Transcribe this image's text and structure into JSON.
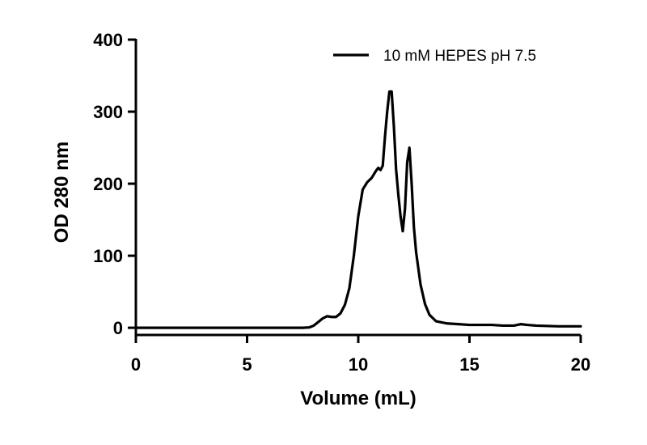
{
  "chart_data": {
    "type": "line",
    "title": "",
    "xlabel": "Volume (mL)",
    "ylabel": "OD 280 nm",
    "xlim": [
      0,
      20
    ],
    "ylim": [
      -10,
      400
    ],
    "xticks": [
      0,
      5,
      10,
      15,
      20
    ],
    "yticks": [
      0,
      100,
      200,
      300,
      400
    ],
    "xtick_labels": [
      "0",
      "5",
      "10",
      "15",
      "20"
    ],
    "ytick_labels": [
      "0",
      "100",
      "200",
      "300",
      "400"
    ],
    "grid": false,
    "legend_position": "top-right",
    "line_color": "#000000",
    "series": [
      {
        "name": "10 mM HEPES pH 7.5",
        "x": [
          0,
          1,
          2,
          3,
          4,
          5,
          6,
          7,
          7.5,
          7.8,
          8.0,
          8.2,
          8.4,
          8.6,
          8.8,
          9.0,
          9.2,
          9.4,
          9.6,
          9.8,
          10.0,
          10.2,
          10.4,
          10.6,
          10.8,
          10.9,
          11.0,
          11.1,
          11.2,
          11.3,
          11.4,
          11.5,
          11.6,
          11.7,
          11.8,
          11.9,
          12.0,
          12.1,
          12.2,
          12.3,
          12.4,
          12.5,
          12.6,
          12.8,
          13.0,
          13.2,
          13.5,
          14.0,
          14.5,
          15.0,
          16.0,
          16.5,
          17.0,
          17.3,
          17.6,
          18.0,
          19.0,
          20.0
        ],
        "y": [
          0,
          0,
          0,
          0,
          0,
          0,
          0,
          0,
          0,
          0.5,
          3,
          8,
          13,
          16,
          15,
          15,
          20,
          32,
          55,
          100,
          155,
          192,
          202,
          208,
          218,
          222,
          219,
          225,
          265,
          300,
          328,
          328,
          280,
          220,
          185,
          155,
          134,
          165,
          230,
          250,
          200,
          140,
          105,
          60,
          33,
          18,
          9,
          6,
          5,
          4,
          4,
          3,
          3,
          5,
          4,
          3,
          2,
          2
        ]
      }
    ]
  }
}
